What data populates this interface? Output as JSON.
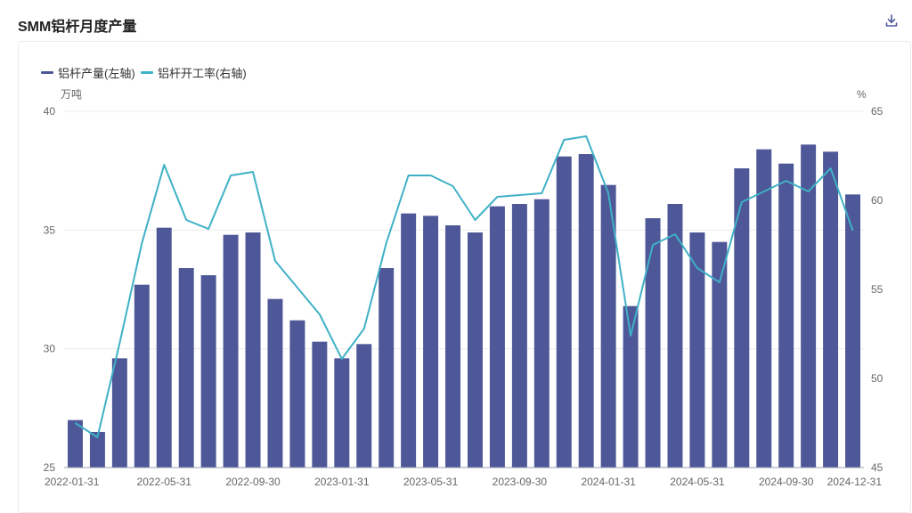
{
  "page": {
    "title": "SMM铝杆月度产量"
  },
  "toolbar": {
    "download_icon": "download-icon"
  },
  "colors": {
    "bar": "#4e5797",
    "line": "#3fb1c6",
    "grid": "#ececec",
    "axis": "#9aa0b0"
  },
  "chart_data": {
    "type": "bar",
    "title": "",
    "legend": {
      "placement": "top-left"
    },
    "grid": true,
    "x": [
      "2022-01-31",
      "2022-02-28",
      "2022-03-31",
      "2022-04-30",
      "2022-05-31",
      "2022-06-30",
      "2022-07-31",
      "2022-08-31",
      "2022-09-30",
      "2022-10-31",
      "2022-11-30",
      "2022-12-31",
      "2023-01-31",
      "2023-02-28",
      "2023-03-31",
      "2023-04-30",
      "2023-05-31",
      "2023-06-30",
      "2023-07-31",
      "2023-08-31",
      "2023-09-30",
      "2023-10-31",
      "2023-11-30",
      "2023-12-31",
      "2024-01-31",
      "2024-02-29",
      "2024-03-31",
      "2024-04-30",
      "2024-05-31",
      "2024-06-30",
      "2024-07-31",
      "2024-08-31",
      "2024-09-30",
      "2024-10-31",
      "2024-11-30",
      "2024-12-31"
    ],
    "x_tick_labels": [
      "2022-01-31",
      "2022-05-31",
      "2022-09-30",
      "2023-01-31",
      "2023-05-31",
      "2023-09-30",
      "2024-01-31",
      "2024-05-31",
      "2024-09-30",
      "2024-12-31"
    ],
    "left_axis": {
      "unit": "万吨",
      "ticks": [
        "25",
        "30",
        "35",
        "40"
      ],
      "range": [
        25,
        40
      ]
    },
    "right_axis": {
      "unit": "%",
      "ticks": [
        "45",
        "50",
        "55",
        "60",
        "65"
      ],
      "range": [
        45,
        65
      ]
    },
    "series": [
      {
        "name": "铝杆产量(左轴)",
        "type": "bar",
        "axis": "left",
        "values": [
          27.0,
          26.5,
          29.6,
          32.7,
          35.1,
          33.4,
          33.1,
          34.8,
          34.9,
          32.1,
          31.2,
          30.3,
          29.6,
          30.2,
          33.4,
          35.7,
          35.6,
          35.2,
          34.9,
          36.0,
          36.1,
          36.3,
          38.1,
          38.2,
          36.9,
          31.8,
          35.5,
          36.1,
          34.9,
          34.5,
          37.6,
          38.4,
          37.8,
          38.6,
          38.3,
          36.5
        ]
      },
      {
        "name": "铝杆开工率(右轴)",
        "type": "line",
        "axis": "right",
        "values": [
          47.5,
          46.7,
          52.0,
          57.6,
          62.0,
          58.9,
          58.4,
          61.4,
          61.6,
          56.6,
          55.1,
          53.6,
          51.1,
          52.8,
          57.6,
          61.4,
          61.4,
          60.8,
          58.9,
          60.2,
          60.3,
          60.4,
          63.4,
          63.6,
          60.4,
          52.4,
          57.5,
          58.1,
          56.2,
          55.4,
          59.9,
          60.5,
          61.1,
          60.5,
          61.8,
          58.3
        ]
      }
    ]
  }
}
